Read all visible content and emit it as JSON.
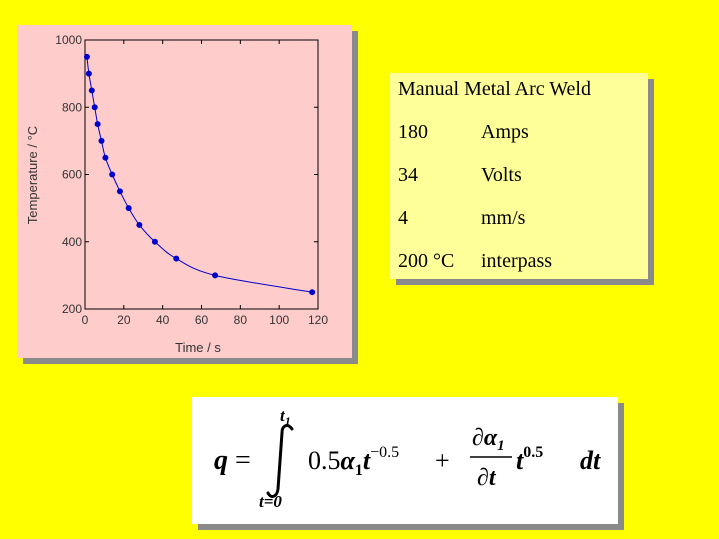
{
  "chart_data": {
    "type": "line",
    "xlabel": "Time / s",
    "ylabel": "Temperature / °C",
    "xlim": [
      0,
      120
    ],
    "ylim": [
      200,
      1000
    ],
    "xticks": [
      "0",
      "20",
      "40",
      "60",
      "80",
      "100",
      "120"
    ],
    "yticks": [
      "200",
      "400",
      "600",
      "800",
      "1000"
    ],
    "grid": false,
    "markers": true,
    "color": "#0000cc",
    "series": [
      {
        "x": [
          1,
          2,
          3.5,
          5,
          6.5,
          8.5,
          10.5,
          14,
          18,
          22.5,
          28,
          36,
          47,
          67,
          117
        ],
        "y": [
          950,
          900,
          850,
          800,
          750,
          700,
          650,
          600,
          550,
          500,
          450,
          400,
          350,
          300,
          250
        ]
      }
    ]
  },
  "weld_info": {
    "title": "Manual Metal Arc Weld",
    "rows": [
      {
        "value": "180",
        "unit": "Amps"
      },
      {
        "value": "34",
        "unit": "Volts"
      },
      {
        "value": "4",
        "unit": "mm/s"
      },
      {
        "value": "200 °C",
        "unit": "interpass"
      }
    ]
  },
  "equation": {
    "lhs": "q =",
    "upper_limit": "t1",
    "lower_limit": "t=0",
    "term1": "0.5α1t^-0.5",
    "term2": "∂α1/∂t t^0.5",
    "differential": "dt"
  }
}
